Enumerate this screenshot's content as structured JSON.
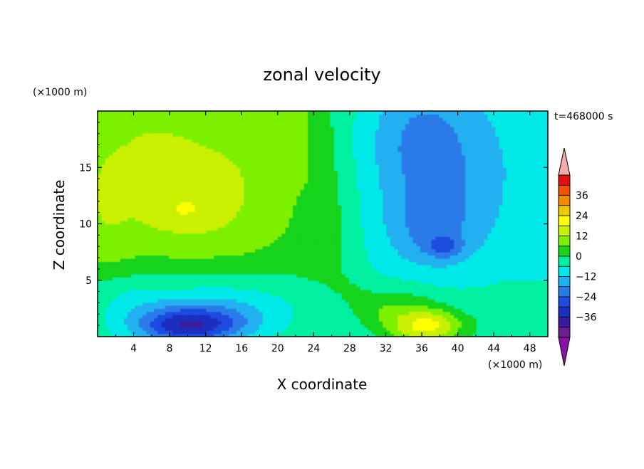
{
  "chart_data": {
    "type": "heatmap",
    "title": "zonal velocity",
    "xlabel": "X coordinate",
    "ylabel": "Z coordinate",
    "x_unit": "(×1000 m)",
    "y_unit": "(×1000 m)",
    "time_label": "t=468000 s",
    "xlim": [
      0,
      50
    ],
    "ylim": [
      0,
      20
    ],
    "xticks": [
      4,
      8,
      12,
      16,
      20,
      24,
      28,
      32,
      36,
      40,
      44,
      48
    ],
    "yticks": [
      5,
      10,
      15
    ],
    "colorbar": {
      "levels": [
        -42,
        -36,
        -30,
        -24,
        -18,
        -12,
        -6,
        0,
        6,
        12,
        18,
        24,
        30,
        36,
        42
      ],
      "tick_labels": [
        36,
        24,
        12,
        0,
        -12,
        -24,
        -36
      ],
      "colors": [
        "#6a1e92",
        "#3a1aa0",
        "#1a2fbf",
        "#1f4be0",
        "#2a7ae8",
        "#20b0f0",
        "#00e8e8",
        "#00f0a0",
        "#19d31c",
        "#7df000",
        "#c8f000",
        "#ffff00",
        "#f0c800",
        "#f08c00",
        "#f05000",
        "#e01010"
      ],
      "under_color": "#8a10a8",
      "over_color": "#f4aaaa"
    },
    "features": [
      {
        "x": 11,
        "z": 13,
        "amp": 8,
        "sx": 7,
        "sz": 4.5
      },
      {
        "x": 9,
        "z": 11,
        "amp": 4,
        "sx": 4,
        "sz": 1.5
      },
      {
        "x": 6,
        "z": 17,
        "amp": 3,
        "sx": 4,
        "sz": 3
      },
      {
        "x": 10,
        "z": 1,
        "amp": -30,
        "sx": 6,
        "sz": 1.6
      },
      {
        "x": 14,
        "z": 2.5,
        "amp": -10,
        "sx": 8,
        "sz": 2.5
      },
      {
        "x": 4,
        "z": 3.5,
        "amp": -5,
        "sx": 5,
        "sz": 2
      },
      {
        "x": 36,
        "z": 17,
        "amp": -12,
        "sx": 6,
        "sz": 6
      },
      {
        "x": 37,
        "z": 9.5,
        "amp": -10,
        "sx": 5,
        "sz": 3.5
      },
      {
        "x": 38.5,
        "z": 8,
        "amp": -10,
        "sx": 2,
        "sz": 1
      },
      {
        "x": 42,
        "z": 14,
        "amp": -4,
        "sx": 6,
        "sz": 6
      },
      {
        "x": 37,
        "z": 1,
        "amp": 20,
        "sx": 3.5,
        "sz": 1.4
      },
      {
        "x": 34,
        "z": 2.5,
        "amp": 8,
        "sx": 4,
        "sz": 2
      },
      {
        "x": 46,
        "z": 2,
        "amp": 3,
        "sx": 3,
        "sz": 2
      },
      {
        "x": 1,
        "z": 12,
        "amp": 4,
        "sx": 3,
        "sz": 6
      }
    ]
  }
}
